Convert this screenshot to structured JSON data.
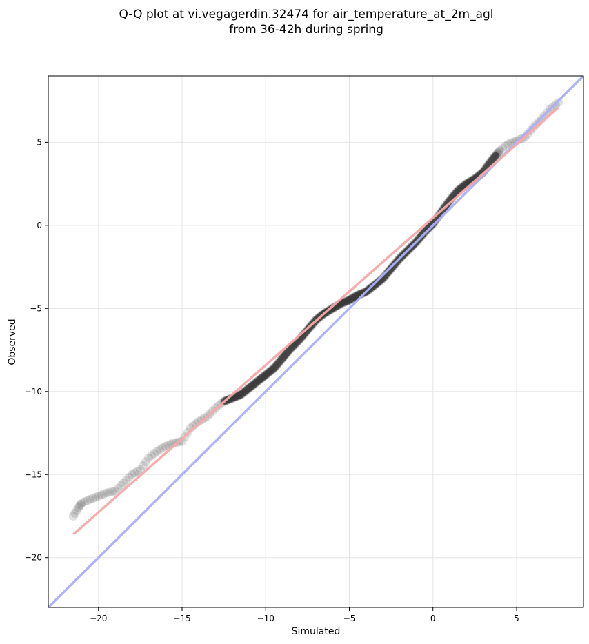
{
  "chart_data": {
    "type": "scatter",
    "title_lines": [
      "Q-Q plot at vi.vegagerdin.32474 for air_temperature_at_2m_agl",
      "from 36-42h during spring"
    ],
    "xlabel": "Simulated",
    "ylabel": "Observed",
    "xlim": [
      -23,
      9
    ],
    "ylim": [
      -23,
      9
    ],
    "xticks": [
      -20,
      -15,
      -10,
      -5,
      0,
      5
    ],
    "yticks": [
      -20,
      -15,
      -10,
      -5,
      0,
      5
    ],
    "xtick_labels": [
      "−20",
      "−15",
      "−10",
      "−5",
      "0",
      "5"
    ],
    "ytick_labels": [
      "−20",
      "−15",
      "−10",
      "−5",
      "0",
      "5"
    ],
    "grid": true,
    "quantile_points": {
      "x": [
        -21.5,
        -21.2,
        -21.0,
        -20.5,
        -20.0,
        -19.5,
        -19.0,
        -18.5,
        -18.0,
        -17.5,
        -17.0,
        -16.5,
        -16.0,
        -15.5,
        -15.0,
        -14.5,
        -14.0,
        -13.5,
        -13.0,
        -12.5,
        -12.0,
        -11.5,
        -11.0,
        -10.5,
        -10.0,
        -9.5,
        -9.0,
        -8.5,
        -8.0,
        -7.5,
        -7.0,
        -6.5,
        -6.0,
        -5.5,
        -5.0,
        -4.5,
        -4.0,
        -3.5,
        -3.0,
        -2.5,
        -2.0,
        -1.5,
        -1.0,
        -0.5,
        0.0,
        0.5,
        1.0,
        1.5,
        2.0,
        2.5,
        3.0,
        3.5,
        4.0,
        4.5,
        5.0,
        5.5,
        6.0,
        6.5,
        7.0,
        7.5
      ],
      "y": [
        -17.5,
        -17.0,
        -16.7,
        -16.5,
        -16.3,
        -16.1,
        -16.0,
        -15.5,
        -15.0,
        -14.7,
        -14.0,
        -13.6,
        -13.3,
        -13.1,
        -13.0,
        -12.2,
        -11.8,
        -11.5,
        -11.0,
        -10.6,
        -10.4,
        -10.2,
        -9.8,
        -9.4,
        -9.0,
        -8.6,
        -8.0,
        -7.4,
        -6.9,
        -6.3,
        -5.7,
        -5.3,
        -5.0,
        -4.7,
        -4.5,
        -4.2,
        -4.0,
        -3.6,
        -3.2,
        -2.6,
        -2.0,
        -1.5,
        -1.0,
        -0.4,
        0.1,
        0.8,
        1.5,
        2.1,
        2.5,
        2.8,
        3.2,
        3.9,
        4.5,
        4.9,
        5.1,
        5.3,
        5.9,
        6.4,
        7.0,
        7.4
      ],
      "color": "#333333",
      "opacity": 0.15
    },
    "identity_line": {
      "x": [
        -23,
        9
      ],
      "y": [
        -23,
        9
      ],
      "color": "#aab0f7"
    },
    "fit_line": {
      "x": [
        -21.5,
        7.5
      ],
      "y": [
        -18.6,
        7.1
      ],
      "color": "#f4a9a9"
    }
  }
}
